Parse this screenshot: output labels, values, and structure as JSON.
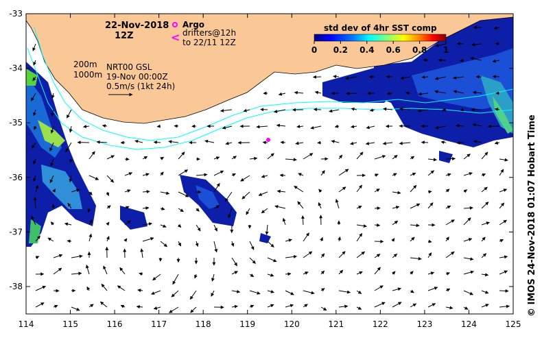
{
  "map": {
    "date": "22-Nov-2018",
    "hour": "12Z",
    "legend_argo": "Argo",
    "legend_drifters_line1": "drifters@12h",
    "legend_drifters_line2": "to 22/11 12Z",
    "contour_200": "200m",
    "contour_1000": "1000m",
    "product": "NRT00 GSL",
    "product_date": "19-Nov 00:00Z",
    "scale_label": "0.5m/s (1kt 24h)",
    "credit": "©  IMOS 24-Nov-2018 01:07 Hobart Time",
    "colorbar": {
      "title": "std dev of 4hr SST comp",
      "ticks": [
        "0",
        "0.2",
        "0.4",
        "0.6",
        "0.8",
        "1"
      ],
      "colors": [
        "#00007f",
        "#0000ff",
        "#007fff",
        "#00ffff",
        "#7fff7f",
        "#ffff00",
        "#ff7f00",
        "#ff0000",
        "#7f0000"
      ]
    },
    "longitude_labels": [
      "114",
      "115",
      "116",
      "117",
      "118",
      "119",
      "120",
      "121",
      "122",
      "123",
      "124",
      "125"
    ],
    "latitude_labels": [
      "-33",
      "-34",
      "-35",
      "-36",
      "-37",
      "-38"
    ],
    "land_color": "#fac896",
    "contour_color": "#00ffff",
    "argo_color": "#ff00ff"
  }
}
